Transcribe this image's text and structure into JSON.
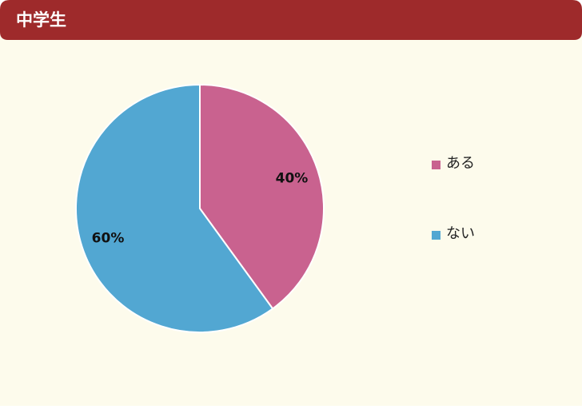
{
  "chart_data": {
    "type": "pie",
    "title": "中学生",
    "categories": [
      "ある",
      "ない"
    ],
    "values": [
      40,
      60
    ],
    "value_labels": [
      "40%",
      "60%"
    ],
    "colors": [
      "#c9628f",
      "#52a7d2"
    ]
  }
}
